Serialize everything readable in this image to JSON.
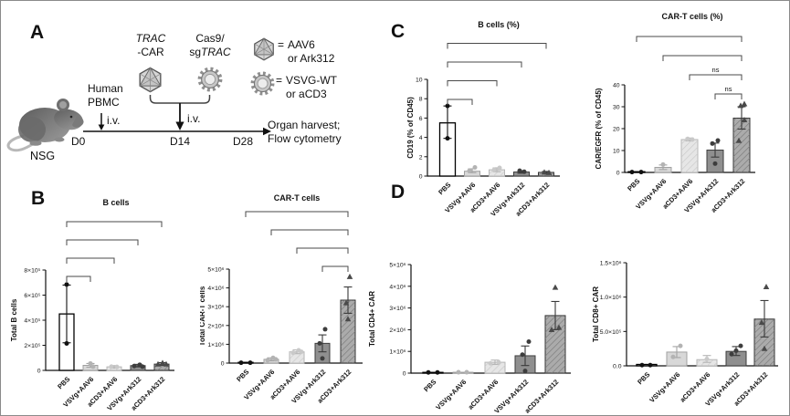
{
  "panel_labels": {
    "a": "A",
    "b": "B",
    "c": "C",
    "d": "D"
  },
  "panel_a": {
    "nsg": "NSG",
    "pbmc": [
      "Human",
      "PBMC"
    ],
    "iv_d0": "i.v.",
    "iv_d14": "i.v.",
    "d0": "D0",
    "d14": "D14",
    "d28": "D28",
    "endpoint": [
      "Organ harvest;",
      "Flow cytometry"
    ],
    "trac_italic": "TRAC",
    "trac_rest": "-CAR",
    "cas9_line1": "Cas9/",
    "cas9_sg": "sg",
    "cas9_italic": "TRAC",
    "legend": [
      {
        "icon": "aav-capsid-icon",
        "eq": "=",
        "line1": "AAV6",
        "line2": "or Ark312"
      },
      {
        "icon": "lentivirus-gear-icon",
        "eq": "=",
        "line1": "VSVG-WT",
        "line2": "or aCD3"
      }
    ]
  },
  "categories": [
    "PBS",
    "VSVg+AAV6",
    "aCD3+AAV6",
    "VSVg+Ark312",
    "aCD3+Ark312"
  ],
  "group_styles": [
    {
      "name": "PBS",
      "fill": "#ffffff",
      "stroke": "#000000",
      "hatch": false,
      "marker": "circle",
      "marker_color": "#111111",
      "err": "#111111"
    },
    {
      "name": "VSVg+AAV6",
      "fill": "#d8d8d8",
      "stroke": "#a0a0a0",
      "hatch": false,
      "marker": "circle",
      "marker_color": "#b3b3b3",
      "err": "#a3a3a3"
    },
    {
      "name": "aCD3+AAV6",
      "fill": "#e6e6e6",
      "stroke": "#b5b5b5",
      "hatch": "light",
      "marker": "circle",
      "marker_color": "#c9c9c9",
      "err": "#b5b5b5"
    },
    {
      "name": "VSVg+Ark312",
      "fill": "#8f8f8f",
      "stroke": "#3d3d3d",
      "hatch": false,
      "marker": "circle",
      "marker_color": "#3d3d3d",
      "err": "#3a3a3a"
    },
    {
      "name": "aCD3+Ark312",
      "fill": "#ababab",
      "stroke": "#333333",
      "hatch": "dark",
      "marker": "triangle",
      "marker_color": "#4a4a4a",
      "err": "#3a3a3a"
    }
  ],
  "chart_data": [
    {
      "id": "b_left",
      "panel": "B",
      "type": "bar",
      "title": "B cells",
      "ylabel": "Total B cells",
      "ylim": [
        0,
        800000
      ],
      "yticks": [
        {
          "v": 0,
          "t": "0"
        },
        {
          "v": 200000,
          "t": "2×10⁵"
        },
        {
          "v": 400000,
          "t": "4×10⁵"
        },
        {
          "v": 600000,
          "t": "6×10⁵"
        },
        {
          "v": 800000,
          "t": "8×10⁵"
        }
      ],
      "categories": [
        "PBS",
        "VSVg+AAV6",
        "aCD3+AAV6",
        "VSVg+Ark312",
        "aCD3+Ark312"
      ],
      "values": [
        450000,
        40000,
        28000,
        38000,
        50000
      ],
      "errors": [
        [
          220000,
          680000
        ],
        [
          25000,
          55000
        ],
        [
          18000,
          38000
        ],
        [
          28000,
          48000
        ],
        [
          40000,
          62000
        ]
      ],
      "points": [
        [
          [
            0,
            215000
          ],
          [
            0,
            685000
          ]
        ],
        [
          [
            0,
            55000
          ],
          [
            3,
            30000
          ]
        ],
        [
          [
            -3,
            30000
          ],
          [
            3,
            28000
          ]
        ],
        [
          [
            -4,
            35000
          ],
          [
            2,
            45000
          ],
          [
            5,
            30000
          ]
        ],
        [
          [
            -4,
            50000
          ],
          [
            1,
            60000
          ],
          [
            5,
            50000
          ]
        ]
      ],
      "brackets": [
        {
          "from": 0,
          "to": 1
        },
        {
          "from": 0,
          "to": 2
        },
        {
          "from": 0,
          "to": 3
        },
        {
          "from": 0,
          "to": 4
        }
      ]
    },
    {
      "id": "b_right",
      "panel": "B",
      "type": "bar",
      "title": "CAR-T cells",
      "ylabel": "Total CAR-T cells",
      "ylim": [
        0,
        5000000
      ],
      "yticks": [
        {
          "v": 0,
          "t": "0"
        },
        {
          "v": 1000000,
          "t": "1×10⁶"
        },
        {
          "v": 2000000,
          "t": "2×10⁶"
        },
        {
          "v": 3000000,
          "t": "3×10⁶"
        },
        {
          "v": 4000000,
          "t": "4×10⁶"
        },
        {
          "v": 5000000,
          "t": "5×10⁶"
        }
      ],
      "categories": [
        "PBS",
        "VSVg+AAV6",
        "aCD3+AAV6",
        "VSVg+Ark312",
        "aCD3+Ark312"
      ],
      "values": [
        30000,
        200000,
        600000,
        1050000,
        3350000
      ],
      "errors": [
        null,
        [
          120000,
          280000
        ],
        [
          500000,
          700000
        ],
        [
          600000,
          1500000
        ],
        [
          2650000,
          4050000
        ]
      ],
      "points": [
        [
          [
            -5,
            20000
          ],
          [
            5,
            20000
          ]
        ],
        [
          [
            -4,
            150000
          ],
          [
            2,
            280000
          ],
          [
            5,
            200000
          ]
        ],
        [
          [
            -4,
            550000
          ],
          [
            2,
            680000
          ],
          [
            5,
            600000
          ]
        ],
        [
          [
            0,
            250000
          ],
          [
            -3,
            1050000
          ],
          [
            3,
            1800000
          ]
        ],
        [
          [
            0,
            2350000
          ],
          [
            -2,
            3200000
          ],
          [
            2,
            4600000
          ]
        ]
      ],
      "brackets": [
        {
          "from": 3,
          "to": 4
        },
        {
          "from": 2,
          "to": 4
        },
        {
          "from": 1,
          "to": 4
        },
        {
          "from": 0,
          "to": 4
        }
      ]
    },
    {
      "id": "c_left",
      "panel": "C",
      "type": "bar",
      "title": "B cells (%)",
      "ylabel": "CD19 (% of CD45)",
      "ylim": [
        0,
        10
      ],
      "yticks": [
        {
          "v": 0,
          "t": "0"
        },
        {
          "v": 2,
          "t": "2"
        },
        {
          "v": 4,
          "t": "4"
        },
        {
          "v": 6,
          "t": "6"
        },
        {
          "v": 8,
          "t": "8"
        },
        {
          "v": 10,
          "t": "10"
        }
      ],
      "categories": [
        "PBS",
        "VSVg+AAV6",
        "aCD3+AAV6",
        "VSVg+Ark312",
        "aCD3+Ark312"
      ],
      "values": [
        5.5,
        0.5,
        0.65,
        0.42,
        0.38
      ],
      "errors": [
        [
          3.9,
          7.25
        ],
        [
          0.35,
          0.75
        ],
        [
          0.45,
          0.85
        ],
        [
          0.3,
          0.55
        ],
        [
          0.28,
          0.48
        ]
      ],
      "points": [
        [
          [
            0,
            3.9
          ],
          [
            0,
            7.25
          ]
        ],
        [
          [
            -3,
            0.55
          ],
          [
            3,
            0.9
          ]
        ],
        [
          [
            -3,
            0.65
          ],
          [
            3,
            0.85
          ]
        ],
        [
          [
            -2,
            0.55
          ],
          [
            3,
            0.45
          ]
        ],
        [
          [
            -2,
            0.4
          ],
          [
            3,
            0.35
          ]
        ]
      ],
      "brackets": [
        {
          "from": 0,
          "to": 1
        },
        {
          "from": 0,
          "to": 2
        },
        {
          "from": 0,
          "to": 3
        },
        {
          "from": 0,
          "to": 4
        }
      ]
    },
    {
      "id": "c_right",
      "panel": "C",
      "type": "bar",
      "title": "CAR-T cells (%)",
      "ylabel": "CAR/EGFR (% of CD45)",
      "ylim": [
        0,
        40
      ],
      "yticks": [
        {
          "v": 0,
          "t": "0"
        },
        {
          "v": 10,
          "t": "10"
        },
        {
          "v": 20,
          "t": "20"
        },
        {
          "v": 30,
          "t": "30"
        },
        {
          "v": 40,
          "t": "40"
        }
      ],
      "categories": [
        "PBS",
        "VSVg+AAV6",
        "aCD3+AAV6",
        "VSVg+Ark312",
        "aCD3+Ark312"
      ],
      "values": [
        0.2,
        2.3,
        15,
        10.2,
        24.8
      ],
      "errors": [
        null,
        [
          1.3,
          3.4
        ],
        [
          14.4,
          15.7
        ],
        [
          7,
          13.4
        ],
        [
          19.8,
          30
        ]
      ],
      "points": [
        [
          [
            -5,
            0.15
          ],
          [
            5,
            0.15
          ]
        ],
        [
          [
            0,
            3.6
          ]
        ],
        [
          [
            -2,
            15.3
          ],
          [
            3,
            15
          ]
        ],
        [
          [
            0,
            4
          ],
          [
            -3,
            13.2
          ],
          [
            3,
            14.6
          ]
        ],
        [
          [
            -3,
            14.5
          ],
          [
            3,
            24
          ],
          [
            -1,
            30.5
          ],
          [
            3,
            31.3
          ]
        ]
      ],
      "brackets": [
        {
          "from": 3,
          "to": 4,
          "label": "ns"
        },
        {
          "from": 2,
          "to": 4,
          "label": "ns"
        },
        {
          "from": 1,
          "to": 4
        },
        {
          "from": 0,
          "to": 4
        }
      ]
    },
    {
      "id": "d_left",
      "panel": "D",
      "type": "bar",
      "title": "",
      "ylabel": "Total CD4+ CAR",
      "ylim": [
        0,
        5000000
      ],
      "yticks": [
        {
          "v": 0,
          "t": "0"
        },
        {
          "v": 1000000,
          "t": "1×10⁶"
        },
        {
          "v": 2000000,
          "t": "2×10⁶"
        },
        {
          "v": 3000000,
          "t": "3×10⁶"
        },
        {
          "v": 4000000,
          "t": "4×10⁶"
        },
        {
          "v": 5000000,
          "t": "5×10⁶"
        }
      ],
      "categories": [
        "PBS",
        "VSVg+AAV6",
        "aCD3+AAV6",
        "VSVg+Ark312",
        "aCD3+Ark312"
      ],
      "values": [
        20000,
        40000,
        500000,
        800000,
        2650000
      ],
      "errors": [
        null,
        null,
        [
          400000,
          600000
        ],
        [
          350000,
          1250000
        ],
        [
          2000000,
          3300000
        ]
      ],
      "points": [
        [
          [
            -5,
            30000
          ],
          [
            5,
            30000
          ]
        ],
        [
          [
            -5,
            40000
          ],
          [
            4,
            40000
          ]
        ],
        [
          [
            -5,
            450000
          ],
          [
            4,
            500000
          ]
        ],
        [
          [
            0,
            100000
          ],
          [
            -3,
            850000
          ],
          [
            4,
            1450000
          ]
        ],
        [
          [
            -4,
            2000000
          ],
          [
            4,
            2100000
          ],
          [
            0,
            3950000
          ]
        ]
      ],
      "brackets": []
    },
    {
      "id": "d_right",
      "panel": "D",
      "type": "bar",
      "title": "",
      "ylabel": "Total CD8+ CAR",
      "ylim": [
        0,
        1500000
      ],
      "yticks": [
        {
          "v": 0,
          "t": "0.0"
        },
        {
          "v": 500000,
          "t": "5.0×10⁵"
        },
        {
          "v": 1000000,
          "t": "1.0×10⁶"
        },
        {
          "v": 1500000,
          "t": "1.5×10⁶"
        }
      ],
      "categories": [
        "PBS",
        "VSVg+AAV6",
        "aCD3+AAV6",
        "VSVg+Ark312",
        "aCD3+Ark312"
      ],
      "values": [
        20000,
        200000,
        90000,
        210000,
        680000
      ],
      "errors": [
        null,
        [
          120000,
          280000
        ],
        [
          50000,
          150000
        ],
        [
          150000,
          280000
        ],
        [
          420000,
          950000
        ]
      ],
      "points": [
        [
          [
            -5,
            10000
          ],
          [
            4,
            10000
          ]
        ],
        [
          [
            -4,
            130000
          ],
          [
            4,
            290000
          ]
        ],
        [
          [
            0,
            100000
          ]
        ],
        [
          [
            -5,
            170000
          ],
          [
            0,
            220000
          ],
          [
            5,
            290000
          ]
        ],
        [
          [
            0,
            250000
          ],
          [
            -3,
            630000
          ],
          [
            2,
            1150000
          ]
        ]
      ],
      "brackets": []
    }
  ]
}
